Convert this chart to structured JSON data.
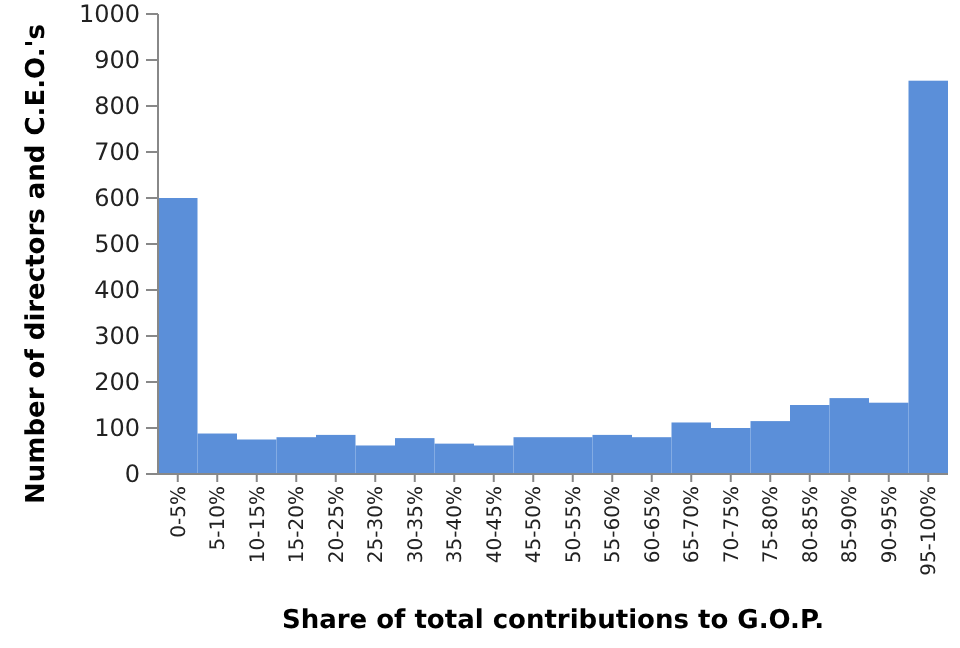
{
  "chart_data": {
    "type": "bar",
    "xlabel": "Share of total contributions to G.O.P.",
    "ylabel": "Number of directors and C.E.O.'s",
    "categories": [
      "0-5%",
      "5-10%",
      "10-15%",
      "15-20%",
      "20-25%",
      "25-30%",
      "30-35%",
      "35-40%",
      "40-45%",
      "45-50%",
      "50-55%",
      "55-60%",
      "60-65%",
      "65-70%",
      "70-75%",
      "75-80%",
      "80-85%",
      "85-90%",
      "90-95%",
      "95-100%"
    ],
    "values": [
      600,
      88,
      75,
      80,
      85,
      62,
      78,
      66,
      62,
      80,
      80,
      85,
      80,
      112,
      100,
      115,
      150,
      165,
      155,
      855
    ],
    "color": "#5b8fd9",
    "ylim": [
      0,
      1000
    ],
    "yticks": [
      0,
      100,
      200,
      300,
      400,
      500,
      600,
      700,
      800,
      900,
      1000
    ],
    "grid": false
  }
}
